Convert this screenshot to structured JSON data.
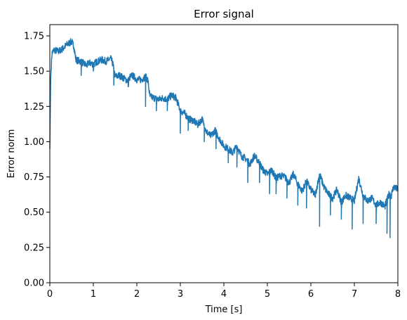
{
  "chart_data": {
    "type": "line",
    "title": "Error signal",
    "xlabel": "Time [s]",
    "ylabel": "Error norm",
    "xlim": [
      0,
      8
    ],
    "ylim": [
      0,
      1.83
    ],
    "xticks": [
      "0",
      "1",
      "2",
      "3",
      "4",
      "5",
      "6",
      "7",
      "8"
    ],
    "yticks": [
      "0.00",
      "0.25",
      "0.50",
      "0.75",
      "1.00",
      "1.25",
      "1.50",
      "1.75"
    ],
    "grid": false,
    "series": [
      {
        "color": "#1f77b4",
        "x": [
          0,
          0.02,
          0.05,
          0.1,
          0.2,
          0.3,
          0.4,
          0.5,
          0.55,
          0.6,
          0.7,
          0.8,
          0.85,
          0.9,
          1.0,
          1.1,
          1.2,
          1.3,
          1.4,
          1.45,
          1.5,
          1.6,
          1.7,
          1.8,
          1.85,
          1.9,
          2.0,
          2.1,
          2.2,
          2.25,
          2.3,
          2.4,
          2.5,
          2.6,
          2.7,
          2.8,
          2.9,
          3.0,
          3.1,
          3.2,
          3.3,
          3.4,
          3.5,
          3.6,
          3.7,
          3.8,
          3.9,
          4.0,
          4.1,
          4.2,
          4.3,
          4.4,
          4.5,
          4.6,
          4.7,
          4.8,
          4.9,
          5.0,
          5.1,
          5.2,
          5.3,
          5.4,
          5.5,
          5.6,
          5.7,
          5.8,
          5.9,
          6.0,
          6.1,
          6.2,
          6.3,
          6.4,
          6.5,
          6.6,
          6.7,
          6.8,
          6.9,
          7.0,
          7.1,
          7.2,
          7.3,
          7.4,
          7.5,
          7.6,
          7.7,
          7.8,
          7.85,
          7.9,
          8.0
        ],
        "y": [
          0.95,
          1.45,
          1.63,
          1.65,
          1.64,
          1.66,
          1.69,
          1.71,
          1.68,
          1.58,
          1.57,
          1.55,
          1.54,
          1.56,
          1.55,
          1.57,
          1.58,
          1.57,
          1.59,
          1.55,
          1.46,
          1.47,
          1.45,
          1.43,
          1.46,
          1.47,
          1.44,
          1.44,
          1.46,
          1.44,
          1.32,
          1.31,
          1.3,
          1.31,
          1.3,
          1.33,
          1.31,
          1.22,
          1.2,
          1.16,
          1.15,
          1.12,
          1.16,
          1.07,
          1.04,
          1.08,
          1.02,
          0.97,
          0.95,
          0.92,
          0.97,
          0.9,
          0.88,
          0.84,
          0.9,
          0.86,
          0.8,
          0.77,
          0.8,
          0.74,
          0.76,
          0.75,
          0.71,
          0.77,
          0.7,
          0.65,
          0.72,
          0.66,
          0.62,
          0.77,
          0.68,
          0.63,
          0.6,
          0.66,
          0.57,
          0.62,
          0.6,
          0.58,
          0.74,
          0.62,
          0.58,
          0.6,
          0.55,
          0.57,
          0.54,
          0.63,
          0.62,
          0.68,
          0.66
        ],
        "dips": [
          {
            "x": 0.72,
            "y": 1.47
          },
          {
            "x": 1.0,
            "y": 1.5
          },
          {
            "x": 1.47,
            "y": 1.4
          },
          {
            "x": 1.8,
            "y": 1.39
          },
          {
            "x": 2.2,
            "y": 1.25
          },
          {
            "x": 2.45,
            "y": 1.22
          },
          {
            "x": 2.7,
            "y": 1.22
          },
          {
            "x": 3.0,
            "y": 1.06
          },
          {
            "x": 3.18,
            "y": 1.08
          },
          {
            "x": 3.55,
            "y": 1.0
          },
          {
            "x": 3.82,
            "y": 0.95
          },
          {
            "x": 4.1,
            "y": 0.85
          },
          {
            "x": 4.3,
            "y": 0.82
          },
          {
            "x": 4.55,
            "y": 0.71
          },
          {
            "x": 4.82,
            "y": 0.71
          },
          {
            "x": 5.05,
            "y": 0.63
          },
          {
            "x": 5.2,
            "y": 0.63
          },
          {
            "x": 5.45,
            "y": 0.6
          },
          {
            "x": 5.7,
            "y": 0.55
          },
          {
            "x": 5.9,
            "y": 0.53
          },
          {
            "x": 6.2,
            "y": 0.4
          },
          {
            "x": 6.45,
            "y": 0.48
          },
          {
            "x": 6.7,
            "y": 0.45
          },
          {
            "x": 6.95,
            "y": 0.38
          },
          {
            "x": 7.2,
            "y": 0.42
          },
          {
            "x": 7.5,
            "y": 0.42
          },
          {
            "x": 7.75,
            "y": 0.35
          },
          {
            "x": 7.82,
            "y": 0.32
          }
        ]
      }
    ]
  }
}
